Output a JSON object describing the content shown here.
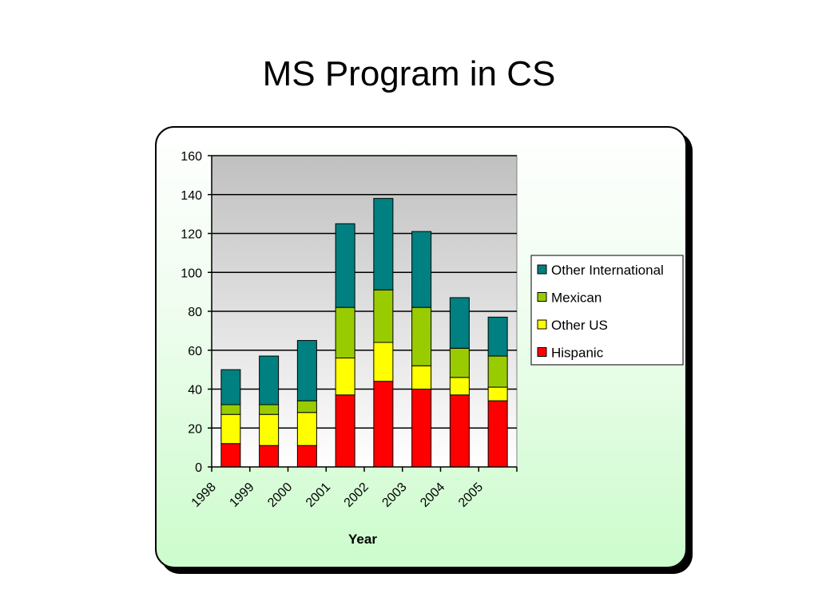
{
  "slide": {
    "title": "MS Program in CS"
  },
  "chart_data": {
    "type": "bar",
    "stacked": true,
    "title": "",
    "xlabel": "Year",
    "ylabel": "",
    "ylim": [
      0,
      160
    ],
    "yticks": [
      0,
      20,
      40,
      60,
      80,
      100,
      120,
      140,
      160
    ],
    "categories": [
      "1998",
      "1999",
      "2000",
      "2001",
      "2002",
      "2003",
      "2004",
      "2005"
    ],
    "grid": true,
    "legend_position": "right",
    "series": [
      {
        "name": "Hispanic",
        "color": "#ff0000",
        "values": [
          12,
          11,
          11,
          37,
          44,
          40,
          37,
          34
        ]
      },
      {
        "name": "Other US",
        "color": "#ffff00",
        "values": [
          15,
          16,
          17,
          19,
          20,
          12,
          9,
          7
        ]
      },
      {
        "name": "Mexican",
        "color": "#99cc00",
        "values": [
          5,
          5,
          6,
          26,
          27,
          30,
          15,
          16
        ]
      },
      {
        "name": "Other International",
        "color": "#008080",
        "values": [
          18,
          25,
          31,
          43,
          47,
          39,
          26,
          20
        ]
      }
    ],
    "plot_background": "#c0c0c0"
  }
}
